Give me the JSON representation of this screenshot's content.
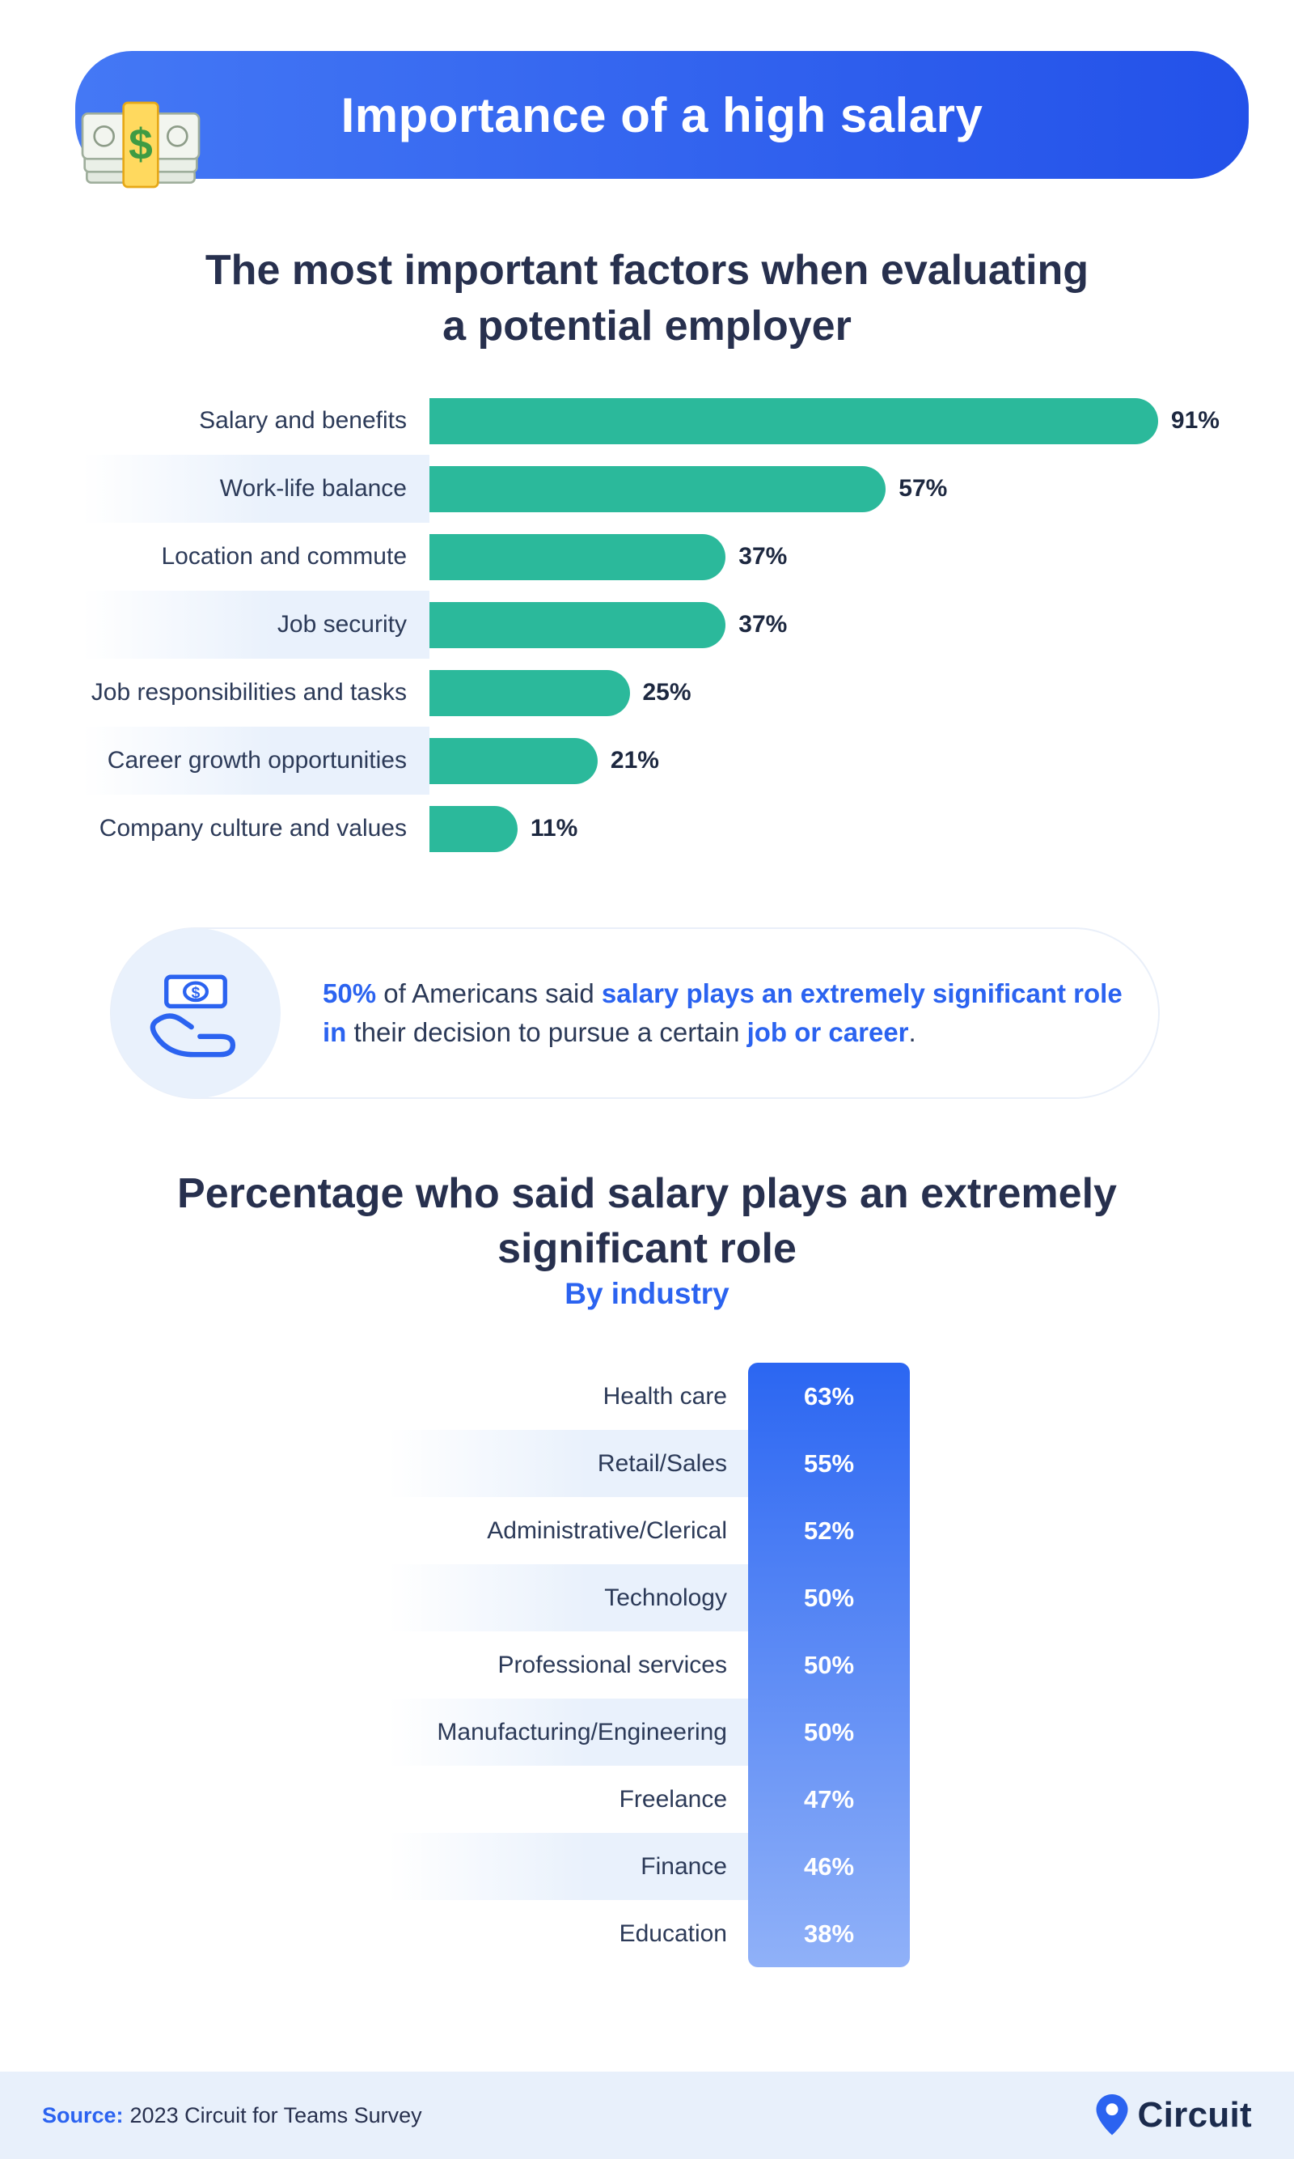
{
  "page": {
    "accent_blue": "#2b63f0",
    "teal": "#2bb99b",
    "dark_navy": "#27304e",
    "stripe_blue": "#e9f1fc",
    "footer_bg": "#e8f0fb"
  },
  "header": {
    "title": "Importance of a high salary",
    "icon": "money-stack-icon",
    "gradient": [
      "#4478f5",
      "#2351e9"
    ]
  },
  "chart_data": [
    {
      "type": "bar",
      "orientation": "horizontal",
      "title": "The most important factors when evaluating a potential employer",
      "title_lines": [
        "The most important factors when evaluating",
        "a potential employer"
      ],
      "categories": [
        "Salary and benefits",
        "Work-life balance",
        "Location and commute",
        "Job security",
        "Job responsibilities and tasks",
        "Career growth opportunities",
        "Company culture and values"
      ],
      "values": [
        91,
        57,
        37,
        37,
        25,
        21,
        11
      ],
      "value_labels": [
        "91%",
        "57%",
        "37%",
        "37%",
        "25%",
        "21%",
        "11%"
      ],
      "unit": "%",
      "xlim": [
        0,
        100
      ],
      "bar_color": "#2bb99b",
      "grid": false,
      "legend": "none"
    },
    {
      "type": "bar",
      "orientation": "horizontal",
      "presentation": "uniform-width value cells with vertical color gradient column",
      "title": "Percentage who said salary plays an extremely significant role",
      "title_lines": [
        "Percentage who said salary plays an extremely",
        "significant role"
      ],
      "subtitle": "By industry",
      "categories": [
        "Health care",
        "Retail/Sales",
        "Administrative/Clerical",
        "Technology",
        "Professional services",
        "Manufacturing/Engineering",
        "Freelance",
        "Finance",
        "Education"
      ],
      "values": [
        63,
        55,
        52,
        50,
        50,
        50,
        47,
        46,
        38
      ],
      "value_labels": [
        "63%",
        "55%",
        "52%",
        "50%",
        "50%",
        "50%",
        "47%",
        "46%",
        "38%"
      ],
      "unit": "%",
      "column_gradient": [
        "#2b66f2",
        "#90b1f8"
      ],
      "grid": false,
      "legend": "none"
    }
  ],
  "callout": {
    "icon": "hand-holding-money-icon",
    "segments": [
      {
        "text": "50%",
        "style": "blue-bold"
      },
      {
        "text": " of Americans said ",
        "style": "normal"
      },
      {
        "text": "salary plays an extremely significant role in",
        "style": "blue-bold"
      },
      {
        "text": " their decision to pursue a certain ",
        "style": "normal"
      },
      {
        "text": "job or career",
        "style": "blue-bold"
      },
      {
        "text": ".",
        "style": "normal"
      }
    ]
  },
  "footer": {
    "source_label": "Source:",
    "source_text": "2023 Circuit for Teams Survey",
    "brand_name": "Circuit",
    "brand_icon": "location-pin-icon"
  }
}
